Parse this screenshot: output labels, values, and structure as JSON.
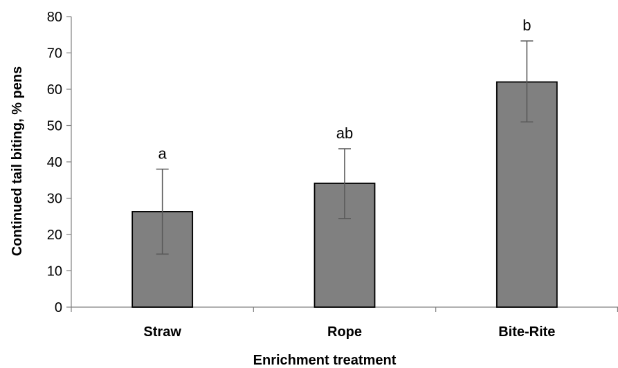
{
  "chart_data": {
    "type": "bar",
    "categories": [
      "Straw",
      "Rope",
      "Bite-Rite"
    ],
    "values": [
      26.3,
      34.1,
      62.0
    ],
    "error_bars": [
      {
        "low": 14.6,
        "high": 38.0
      },
      {
        "low": 24.4,
        "high": 43.6
      },
      {
        "low": 51.0,
        "high": 73.3
      }
    ],
    "significance_labels": [
      "a",
      "ab",
      "b"
    ],
    "title": "",
    "xlabel": "Enrichment treatment",
    "ylabel": "Continued tail biting, % pens",
    "ylim": [
      0,
      80
    ],
    "yticks": [
      0,
      10,
      20,
      30,
      40,
      50,
      60,
      70,
      80
    ],
    "yticks_labels": [
      "0",
      "10",
      "20",
      "30",
      "40",
      "50",
      "60",
      "70",
      "80"
    ],
    "grid": false,
    "legend": "none",
    "colors": {
      "bar_fill": "#808080",
      "bar_stroke": "#000000",
      "error_bar": "#595959",
      "axis": "#808080"
    }
  }
}
